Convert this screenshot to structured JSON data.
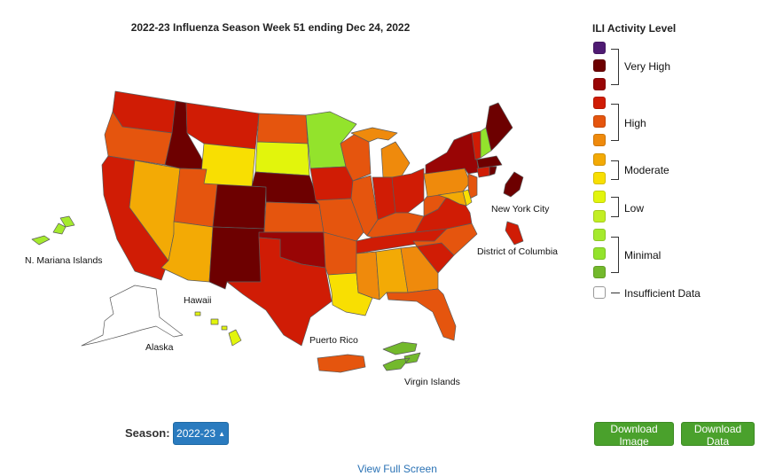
{
  "map": {
    "title": "2022-23 Influenza Season Week 51 ending Dec 24, 2022",
    "labels": {
      "nmi": "N. Mariana Islands",
      "hawaii": "Hawaii",
      "alaska": "Alaska",
      "puerto_rico": "Puerto Rico",
      "virgin_islands": "Virgin Islands",
      "nyc": "New York City",
      "dc": "District of Columbia"
    }
  },
  "legend": {
    "title": "ILI Activity Level",
    "colors": [
      "#4f1b73",
      "#6d0000",
      "#990505",
      "#d01c05",
      "#e5550e",
      "#ef8a0c",
      "#f3aa05",
      "#f8df02",
      "#e2f50c",
      "#c2ee23",
      "#a5ea2d",
      "#93e32c",
      "#73b92c"
    ],
    "groups": {
      "very_high": "Very High",
      "high": "High",
      "moderate": "Moderate",
      "low": "Low",
      "minimal": "Minimal",
      "insufficient": "Insufficient Data"
    }
  },
  "regions": {
    "WA": 3,
    "OR": 4,
    "CA": 3,
    "NV": 6,
    "ID": 1,
    "MT": 3,
    "WY": 7,
    "UT": 4,
    "AZ": 6,
    "CO": 1,
    "NM": 1,
    "ND": 4,
    "SD": 8,
    "NE": 1,
    "KS": 4,
    "OK": 2,
    "TX": 3,
    "MN": 11,
    "IA": 3,
    "MO": 4,
    "AR": 4,
    "LA": 7,
    "WI": 4,
    "IL": 4,
    "MI": 5,
    "IN": 3,
    "OH": 3,
    "KY": 4,
    "TN": 3,
    "MS": 5,
    "AL": 6,
    "GA": 5,
    "FL": 4,
    "SC": 3,
    "NC": 4,
    "VA": 3,
    "WV": 4,
    "PA": 5,
    "NY": 2,
    "VT": 3,
    "NH": 11,
    "ME": 1,
    "MA": 1,
    "CT": 3,
    "RI": 1,
    "NJ": 4,
    "MD": 6,
    "DE": 7,
    "AK": -1,
    "HI": 8,
    "PR": 4,
    "VI": 12,
    "NMI": 10,
    "NYC": 1,
    "DC": 3
  },
  "controls": {
    "season_label": "Season:",
    "season_value": "2022-23",
    "download_image": "Download Image",
    "download_data": "Download Data",
    "full_screen": "View Full Screen"
  }
}
